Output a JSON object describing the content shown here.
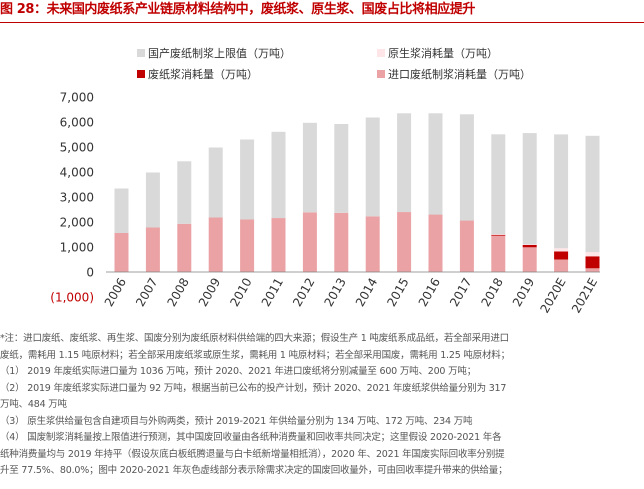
{
  "title": "图 28：未来国内废纸系产业链原材料结构中，废纸浆、原生浆、国废占比将相应提升",
  "colors": {
    "title": "#c00000",
    "domestic": "#d9d9d9",
    "virgin": "#fde5e8",
    "waste": "#c00000",
    "imported": "#eba2a5",
    "negative_tick": "#c00000"
  },
  "chart_data": {
    "type": "bar",
    "stacked": true,
    "categories": [
      "2006",
      "2007",
      "2008",
      "2009",
      "2010",
      "2011",
      "2012",
      "2013",
      "2014",
      "2015",
      "2016",
      "2017",
      "2018",
      "2019",
      "2020E",
      "2021E"
    ],
    "ylim": [
      -1000,
      7000
    ],
    "yticks": [
      -1000,
      0,
      1000,
      2000,
      3000,
      4000,
      5000,
      6000,
      7000
    ],
    "ytick_labels": [
      "(1,000)",
      "0",
      "1,000",
      "2,000",
      "3,000",
      "4,000",
      "5,000",
      "6,000",
      "7,000"
    ],
    "grid": false,
    "legend_position": "top",
    "series": [
      {
        "name": "国产废纸制浆上限值（万吨）",
        "key": "domestic",
        "values": [
          1780,
          2200,
          2500,
          2800,
          3200,
          3450,
          3580,
          3550,
          3950,
          3950,
          4050,
          4250,
          4000,
          4450,
          4550,
          4650
        ]
      },
      {
        "name": "原生浆消耗量（万吨）",
        "key": "virgin",
        "values": [
          0,
          0,
          0,
          0,
          0,
          0,
          0,
          0,
          0,
          0,
          0,
          0,
          20,
          25,
          135,
          170
        ]
      },
      {
        "name": "废纸浆消耗量（万吨）",
        "key": "waste",
        "values": [
          0,
          0,
          0,
          0,
          0,
          0,
          0,
          0,
          0,
          0,
          0,
          0,
          30,
          90,
          320,
          480
        ]
      },
      {
        "name": "进口废纸制浆消耗量（万吨）",
        "key": "imported",
        "values": [
          1560,
          1780,
          1930,
          2180,
          2100,
          2160,
          2390,
          2370,
          2230,
          2400,
          2300,
          2060,
          1460,
          990,
          500,
          150
        ]
      }
    ]
  },
  "notes": [
    "*注：进口废纸、废纸浆、再生浆、国废分别为废纸原材料供给端的四大来源；假设生产 1 吨废纸系成品纸，若全部采用进口",
    "废纸，需耗用 1.15 吨原材料；若全部采用废纸浆或原生浆，需耗用 1 吨原材料；若全部采用国废，需耗用 1.25 吨原材料；",
    "（1） 2019 年废纸实际进口量为 1036 万吨，预计 2020、2021 年进口废纸将分别减量至 600 万吨、200 万吨；",
    "（2） 2019 年废纸浆实际进口量为 92 万吨，根据当前已公布的投产计划，预计 2020、2021 年废纸浆供给量分别为 317",
    "万吨、484 万吨",
    "（3） 原生浆供给量包含自建项目与外购两类，预计 2019-2021 年供给量分别为 134 万吨、172 万吨、234 万吨",
    "（4） 国废制浆消耗量按上限值进行预测，其中国废回收量由各纸种消费量和回收率共同决定；这里假设 2020-2021 年各",
    "纸种消费量均与 2019 年持平（假设灰底白板纸腾退量与白卡纸新增量相抵消），2020 年、2021 年国废实际回收率分别提",
    "升至 77.5%、80.0%；图中 2020-2021 年灰色虚线部分表示除需求决定的国废回收量外，可由回收率提升带来的供给量；"
  ]
}
